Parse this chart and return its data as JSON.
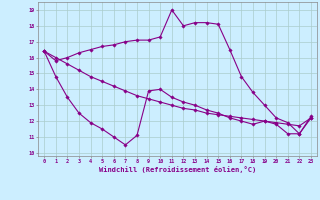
{
  "xlabel": "Windchill (Refroidissement éolien,°C)",
  "background_color": "#cceeff",
  "grid_color": "#aacccc",
  "line_color": "#880088",
  "x_ticks": [
    0,
    1,
    2,
    3,
    4,
    5,
    6,
    7,
    8,
    9,
    10,
    11,
    12,
    13,
    14,
    15,
    16,
    17,
    18,
    19,
    20,
    21,
    22,
    23
  ],
  "ylim": [
    9.8,
    19.5
  ],
  "xlim": [
    -0.5,
    23.5
  ],
  "yticks": [
    10,
    11,
    12,
    13,
    14,
    15,
    16,
    17,
    18,
    19
  ],
  "line1_x": [
    0,
    1,
    2,
    3,
    4,
    5,
    6,
    7,
    8,
    9,
    10,
    11,
    12,
    13,
    14,
    15,
    16,
    17,
    18,
    19,
    20,
    21,
    22,
    23
  ],
  "line1_y": [
    16.4,
    15.8,
    16.0,
    16.3,
    16.5,
    16.7,
    16.8,
    17.0,
    17.1,
    17.1,
    17.3,
    19.0,
    18.0,
    18.2,
    18.2,
    18.1,
    16.5,
    14.8,
    13.8,
    13.0,
    12.2,
    11.9,
    11.2,
    12.2
  ],
  "line2_x": [
    0,
    1,
    2,
    3,
    4,
    5,
    6,
    7,
    8,
    9,
    10,
    11,
    12,
    13,
    14,
    15,
    16,
    17,
    18,
    19,
    20,
    21,
    22,
    23
  ],
  "line2_y": [
    16.4,
    16.0,
    15.6,
    15.2,
    14.8,
    14.5,
    14.2,
    13.9,
    13.6,
    13.4,
    13.2,
    13.0,
    12.8,
    12.7,
    12.5,
    12.4,
    12.3,
    12.2,
    12.1,
    12.0,
    11.9,
    11.8,
    11.7,
    12.2
  ],
  "line3_x": [
    0,
    1,
    2,
    3,
    4,
    5,
    6,
    7,
    8,
    9,
    10,
    11,
    12,
    13,
    14,
    15,
    16,
    17,
    18,
    19,
    20,
    21,
    22,
    23
  ],
  "line3_y": [
    16.4,
    14.8,
    13.5,
    12.5,
    11.9,
    11.5,
    11.0,
    10.5,
    11.1,
    13.9,
    14.0,
    13.5,
    13.2,
    13.0,
    12.7,
    12.5,
    12.2,
    12.0,
    11.8,
    12.0,
    11.8,
    11.2,
    11.2,
    12.3
  ]
}
